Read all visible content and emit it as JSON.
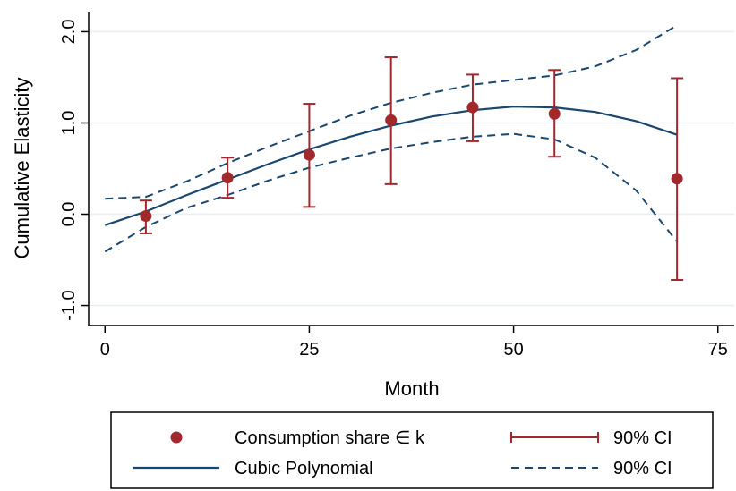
{
  "chart_data": {
    "type": "scatter",
    "xlabel": "Month",
    "ylabel": "Cumulative Elasticity",
    "xlim": [
      -2,
      77
    ],
    "ylim": [
      -1.22,
      2.22
    ],
    "x_ticks": [
      0,
      25,
      50,
      75
    ],
    "x_tick_labels": [
      "0",
      "25",
      "50",
      "75"
    ],
    "y_ticks": [
      -1,
      0,
      1,
      2
    ],
    "y_tick_labels": [
      "-1.0",
      "0.0",
      "1.0",
      "2.0"
    ],
    "grid": "horizontal",
    "legend_position": "bottom",
    "points": {
      "name": "Consumption share ∈ k",
      "color": "#a3282c",
      "x": [
        5,
        15,
        25,
        35,
        45,
        55,
        70
      ],
      "y": [
        -0.02,
        0.4,
        0.65,
        1.03,
        1.17,
        1.1,
        0.39
      ]
    },
    "point_ci": {
      "name": "90% CI",
      "color": "#a3282c",
      "x": [
        5,
        15,
        25,
        35,
        45,
        55,
        70
      ],
      "low": [
        -0.21,
        0.18,
        0.08,
        0.33,
        0.8,
        0.63,
        -0.72
      ],
      "high": [
        0.15,
        0.62,
        1.21,
        1.72,
        1.53,
        1.58,
        1.49
      ]
    },
    "fit": {
      "name": "Cubic Polynomial",
      "color": "#1a476f",
      "x": [
        0,
        5,
        10,
        15,
        20,
        25,
        30,
        35,
        40,
        45,
        50,
        55,
        60,
        65,
        70
      ],
      "y": [
        -0.12,
        0.03,
        0.21,
        0.38,
        0.55,
        0.71,
        0.85,
        0.97,
        1.07,
        1.14,
        1.18,
        1.17,
        1.12,
        1.02,
        0.87
      ]
    },
    "fit_ci": {
      "name": "90% CI",
      "color": "#1a476f",
      "x": [
        0,
        5,
        10,
        15,
        20,
        25,
        30,
        35,
        40,
        45,
        50,
        55,
        60,
        65,
        70
      ],
      "upper": [
        0.17,
        0.19,
        0.36,
        0.56,
        0.74,
        0.91,
        1.08,
        1.22,
        1.33,
        1.42,
        1.47,
        1.52,
        1.62,
        1.8,
        2.07
      ],
      "lower": [
        -0.41,
        -0.14,
        0.07,
        0.21,
        0.37,
        0.51,
        0.62,
        0.72,
        0.79,
        0.85,
        0.88,
        0.82,
        0.62,
        0.26,
        -0.3
      ]
    }
  }
}
